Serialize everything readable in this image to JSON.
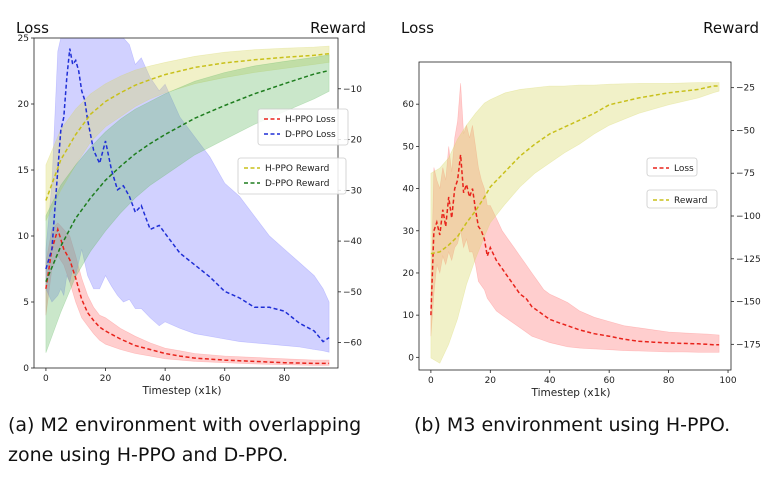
{
  "chart_data": [
    {
      "id": "a",
      "type": "line",
      "caption": "(a) M2 environment with overlapping zone using H-PPO and D-PPO.",
      "left_title": "Loss",
      "right_title": "Reward",
      "xlabel": "Timestep (x1k)",
      "xlim": [
        -4,
        98
      ],
      "ylim_left": [
        0,
        25
      ],
      "ylim_right": [
        -65,
        0
      ],
      "xticks": [
        0,
        20,
        40,
        60,
        80
      ],
      "yticks_left": [
        0,
        5,
        10,
        15,
        20,
        25
      ],
      "yticks_right": [
        -60,
        -50,
        -40,
        -30,
        -20,
        -10
      ],
      "right_tick_labels": [
        "−60",
        "−50",
        "−40",
        "−30",
        "−20",
        "−10"
      ],
      "legends": [
        {
          "entries": [
            "H-PPO Loss",
            "D-PPO Loss"
          ]
        },
        {
          "entries": [
            "H-PPO Reward",
            "D-PPO Reward"
          ]
        }
      ],
      "series": [
        {
          "name": "H-PPO Loss",
          "axis": "left",
          "color": "#e8231b",
          "fill": "#ff7373",
          "x": [
            0,
            2,
            4,
            6,
            8,
            10,
            12,
            14,
            16,
            18,
            20,
            25,
            30,
            35,
            40,
            45,
            50,
            60,
            70,
            80,
            90,
            95
          ],
          "values": [
            6,
            9,
            10.5,
            9,
            8.2,
            6.8,
            5.2,
            4.2,
            3.6,
            3.1,
            2.8,
            2.2,
            1.7,
            1.4,
            1.1,
            0.9,
            0.75,
            0.6,
            0.5,
            0.4,
            0.35,
            0.35
          ],
          "band_lower": [
            4,
            7.5,
            8.5,
            7.8,
            6.5,
            5,
            3.8,
            3.2,
            2.6,
            2.1,
            1.8,
            1.4,
            1.1,
            0.9,
            0.7,
            0.6,
            0.5,
            0.4,
            0.3,
            0.25,
            0.2,
            0.2
          ],
          "band_upper": [
            8,
            10.5,
            11,
            10.5,
            10,
            8.5,
            6.8,
            5.5,
            4.6,
            4,
            3.8,
            3,
            2.4,
            1.9,
            1.5,
            1.3,
            1.1,
            0.9,
            0.8,
            0.7,
            0.6,
            0.6
          ]
        },
        {
          "name": "D-PPO Loss",
          "axis": "left",
          "color": "#1f2fd6",
          "fill": "#7a7aff",
          "x": [
            0,
            2,
            4,
            5,
            6,
            7,
            8,
            9,
            10,
            11,
            12,
            13,
            14,
            16,
            18,
            20,
            22,
            24,
            26,
            28,
            30,
            32,
            35,
            38,
            40,
            45,
            50,
            55,
            60,
            65,
            70,
            75,
            80,
            85,
            90,
            93,
            95
          ],
          "values": [
            7.5,
            9,
            15,
            18,
            19,
            22,
            24.2,
            23,
            23.3,
            22.5,
            21,
            20.3,
            18.8,
            16.5,
            15.5,
            17.2,
            15,
            13.5,
            13.8,
            13,
            11.8,
            12.3,
            10.5,
            10.8,
            10.2,
            8.7,
            7.8,
            6.9,
            5.8,
            5.3,
            4.6,
            4.6,
            4.3,
            3.4,
            2.8,
            2,
            2.3
          ],
          "band_lower": [
            6,
            5,
            5.5,
            6,
            5.5,
            7,
            6.5,
            7.5,
            7,
            8,
            9,
            8,
            7,
            6,
            6,
            7,
            6.2,
            5.5,
            5,
            5.2,
            4.5,
            4.5,
            3.8,
            3.2,
            3.5,
            3,
            2.6,
            2.4,
            2.2,
            2,
            1.9,
            1.8,
            1.7,
            1.6,
            1.4,
            1.3,
            1.2
          ],
          "band_upper": [
            9,
            14,
            24,
            25,
            25,
            25,
            25,
            25,
            25,
            25,
            25,
            25,
            25,
            25,
            25,
            25,
            25,
            25,
            25,
            24.5,
            23,
            23.5,
            22,
            21,
            21.5,
            19,
            17.5,
            16,
            14,
            13,
            11.5,
            10,
            9,
            8,
            7,
            6,
            5
          ]
        },
        {
          "name": "H-PPO Reward",
          "axis": "right",
          "color": "#c8c01a",
          "fill": "#d8d860",
          "x": [
            0,
            5,
            10,
            15,
            20,
            25,
            30,
            35,
            40,
            50,
            60,
            70,
            80,
            90,
            95
          ],
          "values": [
            -32,
            -24,
            -19,
            -15,
            -12.5,
            -10.8,
            -9.3,
            -8.2,
            -7.2,
            -5.8,
            -4.9,
            -4.3,
            -3.8,
            -3.4,
            -3.1
          ],
          "band_lower": [
            -36,
            -30,
            -25,
            -20.5,
            -17.5,
            -15.5,
            -13.5,
            -12,
            -10.8,
            -9,
            -7.8,
            -6.8,
            -6,
            -5.2,
            -4.8
          ],
          "band_upper": [
            -25,
            -18,
            -14,
            -11,
            -9,
            -7.5,
            -6.3,
            -5.5,
            -4.8,
            -3.6,
            -2.8,
            -2.3,
            -2,
            -1.8,
            -1.6
          ]
        },
        {
          "name": "D-PPO Reward",
          "axis": "right",
          "color": "#1e7d1e",
          "fill": "#66bb66",
          "x": [
            0,
            5,
            10,
            15,
            20,
            25,
            30,
            35,
            40,
            50,
            60,
            70,
            80,
            90,
            95
          ],
          "values": [
            -48,
            -41,
            -35.5,
            -31.5,
            -28,
            -25.3,
            -22.8,
            -20.8,
            -19,
            -15.8,
            -13.3,
            -11,
            -9,
            -7.1,
            -6.4
          ],
          "band_lower": [
            -62,
            -54,
            -47,
            -42,
            -38,
            -34.5,
            -31.5,
            -29,
            -27,
            -23,
            -20,
            -17,
            -14.5,
            -12,
            -10.5
          ],
          "band_upper": [
            -35,
            -29,
            -25,
            -21.5,
            -18.5,
            -16,
            -14,
            -12.5,
            -11,
            -8.5,
            -6.8,
            -5.5,
            -4.6,
            -3.8,
            -3.3
          ]
        }
      ]
    },
    {
      "id": "b",
      "type": "line",
      "caption": "(b) M3 environment using H-PPO.",
      "left_title": "Loss",
      "right_title": "Reward",
      "xlabel": "Timestep (x1k)",
      "xlim": [
        -4,
        101
      ],
      "ylim_left": [
        -3,
        70
      ],
      "ylim_right": [
        -190,
        -10
      ],
      "xticks": [
        0,
        20,
        40,
        60,
        80,
        100
      ],
      "yticks_left": [
        0,
        10,
        20,
        30,
        40,
        50,
        60
      ],
      "yticks_right": [
        -175,
        -150,
        -125,
        -100,
        -75,
        -50,
        -25
      ],
      "right_tick_labels": [
        "−175",
        "−150",
        "−125",
        "−100",
        "−75",
        "−50",
        "−25"
      ],
      "legends": [
        {
          "entries": [
            "Loss"
          ]
        },
        {
          "entries": [
            "Reward"
          ]
        }
      ],
      "series": [
        {
          "name": "Loss",
          "axis": "left",
          "color": "#e8231b",
          "fill": "#ff7373",
          "x": [
            0,
            1,
            2,
            3,
            4,
            5,
            6,
            7,
            8,
            9,
            10,
            11,
            12,
            13,
            14,
            15,
            16,
            17,
            18,
            19,
            20,
            22,
            24,
            26,
            28,
            30,
            32,
            34,
            36,
            38,
            40,
            43,
            46,
            50,
            55,
            60,
            65,
            70,
            75,
            80,
            85,
            90,
            93,
            95,
            97
          ],
          "values": [
            10,
            30,
            32,
            29,
            35,
            31,
            38,
            33,
            40,
            42,
            48,
            39,
            41,
            38,
            40,
            35,
            31,
            30,
            28,
            24,
            26,
            23,
            21,
            19,
            17,
            15,
            14,
            12,
            11,
            10,
            9,
            8.2,
            7.5,
            6.5,
            5.6,
            5,
            4.3,
            3.8,
            3.6,
            3.4,
            3.3,
            3.2,
            3.1,
            3,
            3
          ],
          "band_lower": [
            5,
            15,
            22,
            20,
            24,
            22,
            25,
            23,
            26,
            27,
            30,
            26,
            28,
            25,
            25,
            22,
            18,
            17,
            16,
            14,
            13,
            11,
            10,
            9,
            8,
            7,
            6,
            5,
            4.5,
            4,
            3.5,
            3,
            2.5,
            2.2,
            2,
            1.8,
            1.6,
            1.5,
            1.4,
            1.3,
            1.3,
            1.2,
            1.2,
            1.2,
            1.2
          ],
          "band_upper": [
            14,
            45,
            42,
            40,
            45,
            42,
            50,
            44,
            52,
            56,
            65,
            53,
            55,
            52,
            55,
            50,
            45,
            42,
            40,
            36,
            36,
            33,
            30,
            28,
            26,
            24,
            22,
            20,
            18,
            16,
            15,
            14,
            13,
            11,
            9.5,
            8.5,
            7.5,
            7,
            6.5,
            6,
            5.8,
            5.6,
            5.5,
            5.4,
            5.3
          ]
        },
        {
          "name": "Reward",
          "axis": "right",
          "color": "#c8c01a",
          "fill": "#d8d860",
          "x": [
            0,
            3,
            6,
            9,
            12,
            15,
            18,
            20,
            25,
            30,
            35,
            40,
            45,
            50,
            55,
            60,
            70,
            80,
            90,
            95,
            97
          ],
          "values": [
            -122,
            -121,
            -117,
            -112,
            -104,
            -97,
            -89,
            -83,
            -74,
            -65,
            -58,
            -52,
            -48,
            -44,
            -40,
            -35,
            -31,
            -28,
            -26,
            -24,
            -24
          ],
          "band_lower": [
            -183,
            -186,
            -175,
            -160,
            -140,
            -125,
            -112,
            -104,
            -93,
            -83,
            -75,
            -69,
            -63,
            -58,
            -52,
            -47,
            -40,
            -35,
            -31,
            -28,
            -27
          ],
          "band_upper": [
            -75,
            -72,
            -66,
            -55,
            -47,
            -40,
            -34,
            -32,
            -28,
            -26,
            -25,
            -24,
            -24,
            -23.5,
            -23.5,
            -23,
            -22.5,
            -22.5,
            -22,
            -22,
            -22
          ]
        }
      ]
    }
  ]
}
